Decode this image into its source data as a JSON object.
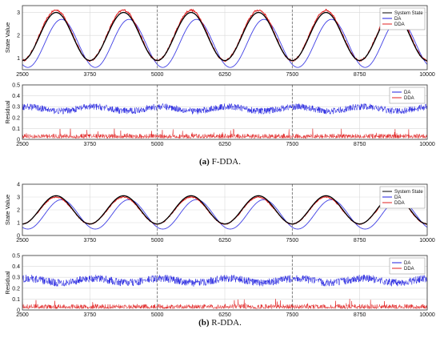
{
  "figure": {
    "captions": [
      {
        "label": "(a)",
        "text": "F-DDA."
      },
      {
        "label": "(b)",
        "text": "R-DDA."
      }
    ]
  },
  "colors": {
    "system_state": "#000000",
    "da": "#1f1fe0",
    "dda": "#e01f1f",
    "axis": "#333333",
    "grid": "#d9d9d9",
    "boundary": "#666666"
  },
  "chart_data": [
    {
      "id": "a-state",
      "type": "line",
      "title": "",
      "xlabel": "",
      "ylabel": "State Value",
      "xlim": [
        2500,
        10000
      ],
      "ylim": [
        0.5,
        3.3
      ],
      "xticks": [
        "2500",
        "3750",
        "5000",
        "6250",
        "7500",
        "8750",
        "10000"
      ],
      "yticks": [
        "1",
        "2",
        "3"
      ],
      "grid": true,
      "vlines": [
        5000,
        7500
      ],
      "legend": {
        "position": "top-right",
        "entries": [
          "System State",
          "DA",
          "DDA"
        ]
      },
      "series": [
        {
          "name": "System State",
          "shape": "sine",
          "period": 1250,
          "min": 0.9,
          "max": 3.0,
          "peak_x": 3125
        },
        {
          "name": "DA",
          "shape": "sine",
          "period": 1250,
          "min": 0.6,
          "max": 2.7,
          "peak_x": 3225
        },
        {
          "name": "DDA",
          "shape": "sine",
          "period": 1250,
          "min": 0.9,
          "max": 3.1,
          "peak_x": 3125
        }
      ]
    },
    {
      "id": "a-residual",
      "type": "line",
      "title": "",
      "xlabel": "",
      "ylabel": "Residual",
      "xlim": [
        2500,
        10000
      ],
      "ylim": [
        0,
        0.5
      ],
      "xticks": [
        "2500",
        "3750",
        "5000",
        "6250",
        "7500",
        "8750",
        "10000"
      ],
      "yticks": [
        "0",
        "0.1",
        "0.2",
        "0.3",
        "0.4",
        "0.5"
      ],
      "grid": true,
      "vlines": [
        5000,
        7500
      ],
      "legend": {
        "position": "top-right",
        "entries": [
          "DA",
          "DDA"
        ]
      },
      "series": [
        {
          "name": "DA",
          "shape": "noise",
          "mean": 0.28,
          "spread": 0.03,
          "wave": 0.02
        },
        {
          "name": "DDA",
          "shape": "noise",
          "mean": 0.03,
          "spread": 0.03,
          "wave": 0.0
        }
      ]
    },
    {
      "id": "b-state",
      "type": "line",
      "title": "",
      "xlabel": "",
      "ylabel": "State Value",
      "xlim": [
        2500,
        10000
      ],
      "ylim": [
        0,
        4
      ],
      "xticks": [
        "2500",
        "3750",
        "5000",
        "6250",
        "7500",
        "8750",
        "10000"
      ],
      "yticks": [
        "0",
        "1",
        "2",
        "3",
        "4"
      ],
      "grid": true,
      "vlines": [
        5000,
        7500
      ],
      "legend": {
        "position": "top-right",
        "entries": [
          "System State",
          "DA",
          "DDA"
        ]
      },
      "series": [
        {
          "name": "System State",
          "shape": "sine",
          "period": 1250,
          "min": 0.9,
          "max": 3.1,
          "peak_x": 3125
        },
        {
          "name": "DA",
          "shape": "sine",
          "period": 1250,
          "min": 0.5,
          "max": 2.8,
          "peak_x": 3225
        },
        {
          "name": "DDA",
          "shape": "sine",
          "period": 1250,
          "min": 0.9,
          "max": 3.0,
          "peak_x": 3125
        }
      ]
    },
    {
      "id": "b-residual",
      "type": "line",
      "title": "",
      "xlabel": "",
      "ylabel": "Residual",
      "xlim": [
        2500,
        10000
      ],
      "ylim": [
        0,
        0.5
      ],
      "xticks": [
        "2500",
        "3750",
        "5000",
        "6250",
        "7500",
        "8750",
        "10000"
      ],
      "yticks": [
        "0",
        "0.1",
        "0.2",
        "0.3",
        "0.4",
        "0.5"
      ],
      "grid": true,
      "vlines": [
        5000,
        7500
      ],
      "legend": {
        "position": "top-right",
        "entries": [
          "DA",
          "DDA"
        ]
      },
      "series": [
        {
          "name": "DA",
          "shape": "noise",
          "mean": 0.27,
          "spread": 0.035,
          "wave": 0.02
        },
        {
          "name": "DDA",
          "shape": "noise",
          "mean": 0.035,
          "spread": 0.03,
          "wave": 0.0
        }
      ]
    }
  ]
}
